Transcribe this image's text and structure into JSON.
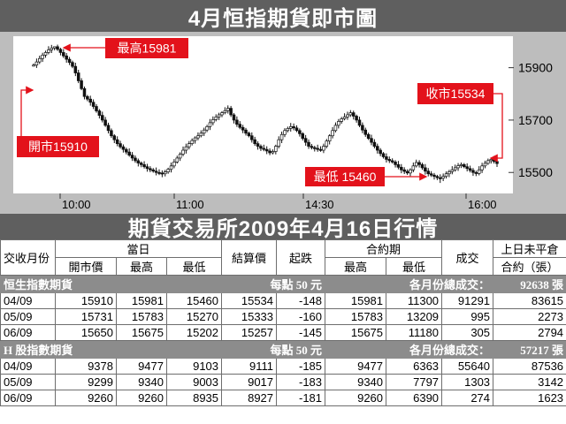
{
  "title": "4月恒指期貨即市圖",
  "subtitle": "期貨交易所2009年4月16日行情",
  "colors": {
    "dark_bar": "#5f5f5f",
    "chart_bg": "#bdbdbd",
    "plot_bg": "#ffffff",
    "candle_up": "#ffffff",
    "candle_down": "#111111",
    "callout": "#e3121b",
    "section_bg": "#8c8c8c"
  },
  "chart_data": {
    "type": "candlestick",
    "title": "4月恒指期貨即市圖",
    "x_ticks": [
      "10:00",
      "11:00",
      "14:30",
      "16:00"
    ],
    "y_ticks": [
      15500,
      15700,
      15900
    ],
    "ylim": [
      15430,
      16010
    ],
    "grid": false,
    "open": 15910,
    "high": 15981,
    "low": 15460,
    "close": 15534,
    "series": [
      {
        "values": [
          15910,
          15922,
          15935,
          15948,
          15958,
          15968,
          15975,
          15980,
          15970,
          15958,
          15945,
          15932,
          15920,
          15905,
          15880,
          15850,
          15820,
          15790,
          15780,
          15768,
          15752,
          15735,
          15718,
          15700,
          15680,
          15660,
          15640,
          15625,
          15610,
          15598,
          15588,
          15578,
          15566,
          15555,
          15545,
          15536,
          15530,
          15522,
          15515,
          15510,
          15505,
          15500,
          15498,
          15495,
          15502,
          15512,
          15525,
          15540,
          15555,
          15570,
          15585,
          15598,
          15610,
          15622,
          15632,
          15640,
          15650,
          15662,
          15675,
          15690,
          15702,
          15712,
          15720,
          15728,
          15736,
          15745,
          15720,
          15700,
          15684,
          15672,
          15662,
          15650,
          15640,
          15625,
          15610,
          15600,
          15592,
          15588,
          15582,
          15575,
          15580,
          15600,
          15625,
          15645,
          15660,
          15668,
          15675,
          15670,
          15660,
          15648,
          15630,
          15615,
          15600,
          15595,
          15592,
          15588,
          15585,
          15600,
          15620,
          15640,
          15660,
          15680,
          15695,
          15705,
          15712,
          15720,
          15728,
          15715,
          15700,
          15680,
          15662,
          15645,
          15630,
          15615,
          15600,
          15585,
          15572,
          15560,
          15550,
          15545,
          15540,
          15530,
          15520,
          15510,
          15504,
          15498,
          15510,
          15525,
          15538,
          15530,
          15518,
          15505,
          15495,
          15490,
          15485,
          15480,
          15478,
          15485,
          15495,
          15503,
          15510,
          15518,
          15526,
          15530,
          15522,
          15515,
          15508,
          15500,
          15496,
          15510,
          15525,
          15535,
          15545,
          15550,
          15542,
          15534
        ]
      }
    ]
  },
  "callouts": {
    "high": "最高15981",
    "open": "開市15910",
    "close": "收市15534",
    "low": "最低 15460"
  },
  "table": {
    "header1": [
      "交收月份",
      "當日",
      "結算價",
      "起跌",
      "合約期",
      "成交",
      "上日未平倉"
    ],
    "header2": [
      "開市價",
      "最高",
      "最低",
      "最高",
      "最低",
      "合約（張）"
    ],
    "sections": [
      {
        "name": "恒生指數期貨",
        "unit": "每點 50 元",
        "total_label": "各月份總成交：",
        "total": "92638 張",
        "rows": [
          [
            "04/09",
            "15910",
            "15981",
            "15460",
            "15534",
            "-148",
            "15981",
            "11300",
            "91291",
            "83615"
          ],
          [
            "05/09",
            "15731",
            "15783",
            "15270",
            "15333",
            "-160",
            "15783",
            "13209",
            "995",
            "2273"
          ],
          [
            "06/09",
            "15650",
            "15675",
            "15202",
            "15257",
            "-145",
            "15675",
            "11180",
            "305",
            "2794"
          ]
        ]
      },
      {
        "name": "H 股指數期貨",
        "unit": "每點 50 元",
        "total_label": "各月份總成交：",
        "total": "57217 張",
        "rows": [
          [
            "04/09",
            "9378",
            "9477",
            "9103",
            "9111",
            "-185",
            "9477",
            "6363",
            "55640",
            "87536"
          ],
          [
            "05/09",
            "9299",
            "9340",
            "9003",
            "9017",
            "-183",
            "9340",
            "7797",
            "1303",
            "3142"
          ],
          [
            "06/09",
            "9260",
            "9260",
            "8935",
            "8927",
            "-181",
            "9260",
            "6390",
            "274",
            "1623"
          ]
        ]
      }
    ]
  }
}
